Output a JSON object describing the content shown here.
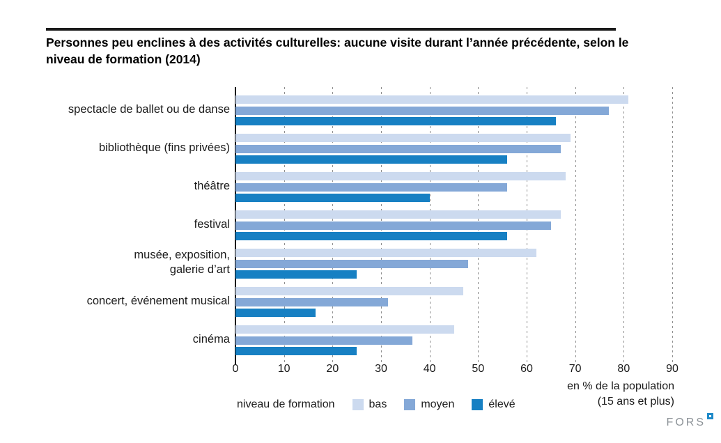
{
  "title": "Personnes peu enclines à des activités culturelles: aucune visite durant l’année précédente, selon le niveau de formation (2014)",
  "chart_data": {
    "type": "bar",
    "orientation": "horizontal",
    "title": "Personnes peu enclines à des activités culturelles: aucune visite durant l’année précédente, selon le niveau de formation (2014)",
    "categories": [
      "spectacle de ballet ou de danse",
      "bibliothèque (fins privées)",
      "théâtre",
      "festival",
      "musée, exposition,\ngalerie d’art",
      "concert, événement musical",
      "cinéma"
    ],
    "series": [
      {
        "name": "bas",
        "color": "#ccdaef",
        "values": [
          81,
          69,
          68,
          67,
          62,
          47,
          45
        ]
      },
      {
        "name": "moyen",
        "color": "#84a8d7",
        "values": [
          77,
          67,
          56,
          65,
          48,
          31.5,
          36.5
        ]
      },
      {
        "name": "élevé",
        "color": "#1780c3",
        "values": [
          66,
          56,
          40,
          56,
          25,
          16.5,
          25
        ]
      }
    ],
    "xlim": [
      0,
      90
    ],
    "xticks": [
      0,
      10,
      20,
      30,
      40,
      50,
      60,
      70,
      80,
      90
    ],
    "xlabel_line1": "en % de la population",
    "xlabel_line2": "(15 ans et plus)",
    "legend_title": "niveau de formation",
    "legend_position": "bottom",
    "grid": "dashed-vertical",
    "gridline_color": "#8f8f8f"
  },
  "logo": {
    "text": "FORS"
  }
}
